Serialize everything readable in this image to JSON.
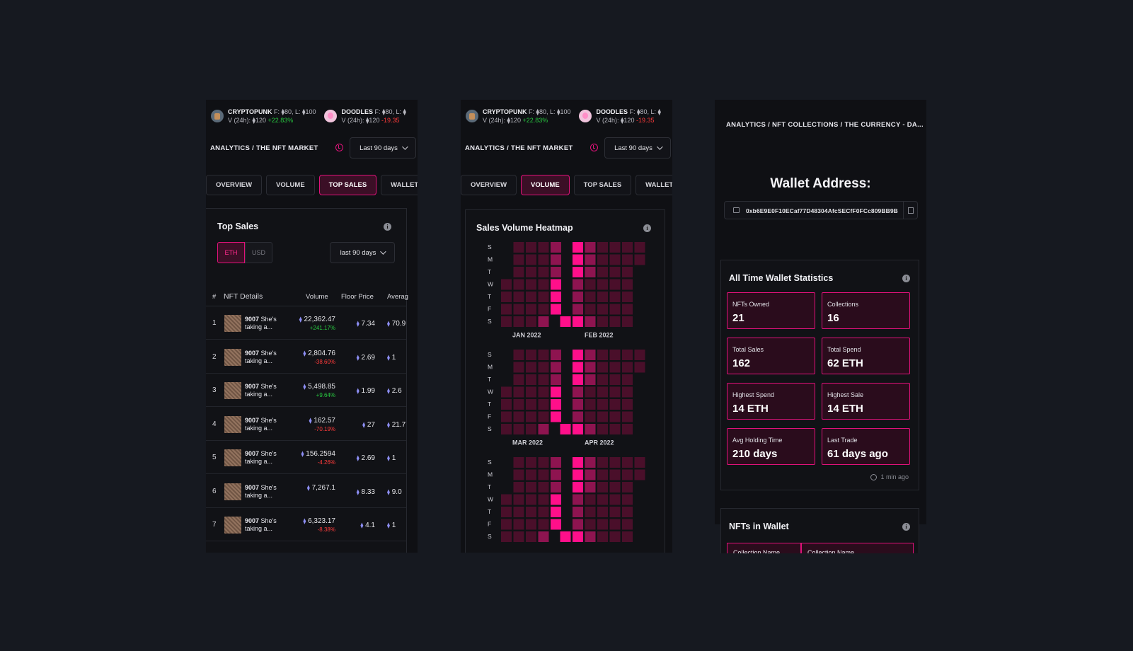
{
  "ticker": [
    {
      "name": "CRYPTOPUNK",
      "stats": "F: ⧫80, L: ⧫100",
      "vol_label": "V (24h): ⧫120",
      "change": "+22.83%",
      "change_dir": "pos",
      "avatar": "punk-avatar-icon"
    },
    {
      "name": "DOODLES",
      "stats": "F: ⧫80, L: ⧫",
      "vol_label": "V (24h): ⧫120",
      "change": "-19.35",
      "change_dir": "neg",
      "avatar": "doodle-avatar-icon"
    }
  ],
  "header": {
    "breadcrumb": "ANALYTICS / THE NFT MARKET",
    "range": "Last 90 days"
  },
  "tabs": [
    "OVERVIEW",
    "VOLUME",
    "TOP SALES",
    "WALLET A"
  ],
  "tabs2_last": "WALLET AC",
  "top_sales": {
    "title": "Top Sales",
    "currency_on": "ETH",
    "currency_off": "USD",
    "range": "last 90 days",
    "columns": {
      "index": "#",
      "details": "NFT Details",
      "volume": "Volume",
      "floor": "Floor Price",
      "avg": "Averag"
    },
    "rows": [
      {
        "idx": "1",
        "id": "9007",
        "name1": "She's",
        "name2": "taking a...",
        "volume": "22,362.47",
        "change": "+241.17%",
        "dir": "pos",
        "floor": "7.34",
        "avg": "70.9"
      },
      {
        "idx": "2",
        "id": "9007",
        "name1": "She's",
        "name2": "taking a...",
        "volume": "2,804.76",
        "change": "-38.60%",
        "dir": "neg",
        "floor": "2.69",
        "avg": "1"
      },
      {
        "idx": "3",
        "id": "9007",
        "name1": "She's",
        "name2": "taking a...",
        "volume": "5,498.85",
        "change": "+9.64%",
        "dir": "pos",
        "floor": "1.99",
        "avg": "2.6"
      },
      {
        "idx": "4",
        "id": "9007",
        "name1": "She's",
        "name2": "taking a...",
        "volume": "162.57",
        "change": "-70.19%",
        "dir": "neg",
        "floor": "27",
        "avg": "21.7"
      },
      {
        "idx": "5",
        "id": "9007",
        "name1": "She's",
        "name2": "taking a...",
        "volume": "156.2594",
        "change": "-4.26%",
        "dir": "neg",
        "floor": "2.69",
        "avg": "1"
      },
      {
        "idx": "6",
        "id": "9007",
        "name1": "She's",
        "name2": "taking a...",
        "volume": "7,267.1",
        "change": "",
        "dir": "pos",
        "floor": "8.33",
        "avg": "9.0"
      },
      {
        "idx": "7",
        "id": "9007",
        "name1": "She's",
        "name2": "taking a...",
        "volume": "6,323.17",
        "change": "-8.38%",
        "dir": "neg",
        "floor": "4.1",
        "avg": "1"
      }
    ]
  },
  "heatmap": {
    "title": "Sales Volume Heatmap",
    "days": [
      "S",
      "M",
      "T",
      "W",
      "T",
      "F",
      "S"
    ],
    "months": [
      "JAN 2022",
      "FEB 2022",
      "MAR 2022",
      "APR 2022"
    ],
    "colors": {
      "low": "#4a0f2a",
      "mid": "#8e1450",
      "high": "#ff0f8a"
    }
  },
  "wallet": {
    "breadcrumb": "ANALYTICS / NFT COLLECTIONS / THE CURRENCY - DA...",
    "title": "Wallet Address:",
    "address": "0xb6E9E0F10ECaf77D48304AfcSECfF0FCc809BB9B",
    "stats_title": "All Time Wallet Statistics",
    "stats": [
      {
        "label": "NFTs Owned",
        "value": "21"
      },
      {
        "label": "Collections",
        "value": "16"
      },
      {
        "label": "Total Sales",
        "value": "162"
      },
      {
        "label": "Total Spend",
        "value": "62 ETH"
      },
      {
        "label": "Highest Spend",
        "value": "14 ETH"
      },
      {
        "label": "Highest Sale",
        "value": "14 ETH"
      },
      {
        "label": "Avg Holding Time",
        "value": "210 days"
      },
      {
        "label": "Last Trade",
        "value": "61 days ago"
      }
    ],
    "updated": "1 min ago",
    "nfts_title": "NFTs in Wallet",
    "nft_cols": [
      "Collection Name",
      "Collection Name"
    ]
  }
}
